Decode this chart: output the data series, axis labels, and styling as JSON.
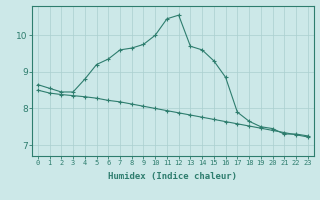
{
  "xlabel": "Humidex (Indice chaleur)",
  "ylabel": "",
  "bg_color": "#cce8e8",
  "line_color": "#2e7d6e",
  "grid_color": "#aacfcf",
  "xlim": [
    -0.5,
    23.5
  ],
  "ylim": [
    6.7,
    10.8
  ],
  "xticks": [
    0,
    1,
    2,
    3,
    4,
    5,
    6,
    7,
    8,
    9,
    10,
    11,
    12,
    13,
    14,
    15,
    16,
    17,
    18,
    19,
    20,
    21,
    22,
    23
  ],
  "yticks": [
    7,
    8,
    9,
    10
  ],
  "line1_x": [
    0,
    1,
    2,
    3,
    4,
    5,
    6,
    7,
    8,
    9,
    10,
    11,
    12,
    13,
    14,
    15,
    16,
    17,
    18,
    19,
    20,
    21,
    22,
    23
  ],
  "line1_y": [
    8.65,
    8.55,
    8.45,
    8.45,
    8.8,
    9.2,
    9.35,
    9.6,
    9.65,
    9.75,
    10.0,
    10.45,
    10.55,
    9.7,
    9.6,
    9.3,
    8.85,
    7.9,
    7.65,
    7.5,
    7.45,
    7.3,
    7.3,
    7.25
  ],
  "line2_x": [
    0,
    1,
    2,
    3,
    4,
    5,
    6,
    7,
    8,
    9,
    10,
    11,
    12,
    13,
    14,
    15,
    16,
    17,
    18,
    19,
    20,
    21,
    22,
    23
  ],
  "line2_y": [
    8.5,
    8.42,
    8.38,
    8.35,
    8.32,
    8.28,
    8.22,
    8.18,
    8.12,
    8.06,
    8.0,
    7.94,
    7.88,
    7.82,
    7.76,
    7.7,
    7.64,
    7.58,
    7.52,
    7.46,
    7.4,
    7.34,
    7.28,
    7.22
  ],
  "xlabel_fontsize": 6.5,
  "xtick_fontsize": 5.0,
  "ytick_fontsize": 6.5
}
